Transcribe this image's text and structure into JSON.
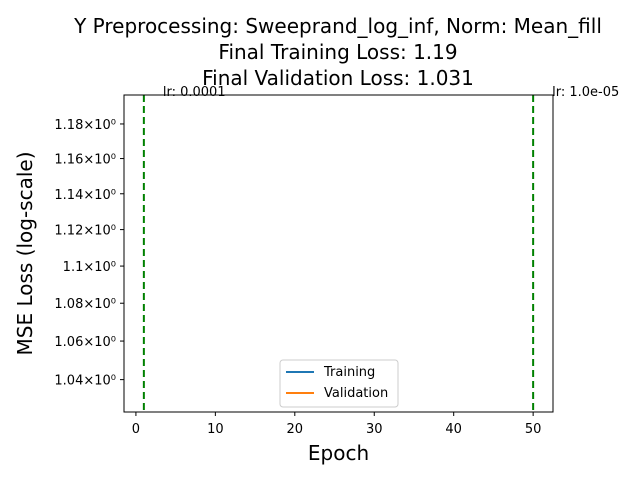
{
  "chart_data": {
    "type": "line",
    "title_lines": [
      "Y Preprocessing: Sweeprand_log_inf, Norm: Mean_fill",
      "Final Training Loss: 1.19",
      "Final Validation Loss: 1.031"
    ],
    "xlabel": "Epoch",
    "ylabel": "MSE Loss (log-scale)",
    "x_range": [
      -1.5,
      52.5
    ],
    "y_range": [
      1.0235,
      1.197
    ],
    "y_scale": "log",
    "x_ticks": [
      0,
      10,
      20,
      30,
      40,
      50
    ],
    "x_tick_labels": [
      "0",
      "10",
      "20",
      "30",
      "40",
      "50"
    ],
    "y_ticks": [
      1.04,
      1.06,
      1.08,
      1.1,
      1.12,
      1.14,
      1.16,
      1.18
    ],
    "y_tick_labels": [
      "1.04×10⁰",
      "1.06×10⁰",
      "1.08×10⁰",
      "1.1×10⁰",
      "1.12×10⁰",
      "1.14×10⁰",
      "1.16×10⁰",
      "1.18×10⁰"
    ],
    "series": [
      {
        "name": "Training",
        "color": "#1f77b4",
        "x": [],
        "y": []
      },
      {
        "name": "Validation",
        "color": "#ff7f0e",
        "x": [],
        "y": []
      }
    ],
    "vlines": [
      {
        "x": 1,
        "color": "#008000",
        "label": "lr: 0.0001"
      },
      {
        "x": 50,
        "color": "#008000",
        "label": "lr: 1.0e-05"
      }
    ],
    "legend_position": "lower center",
    "grid": false
  }
}
